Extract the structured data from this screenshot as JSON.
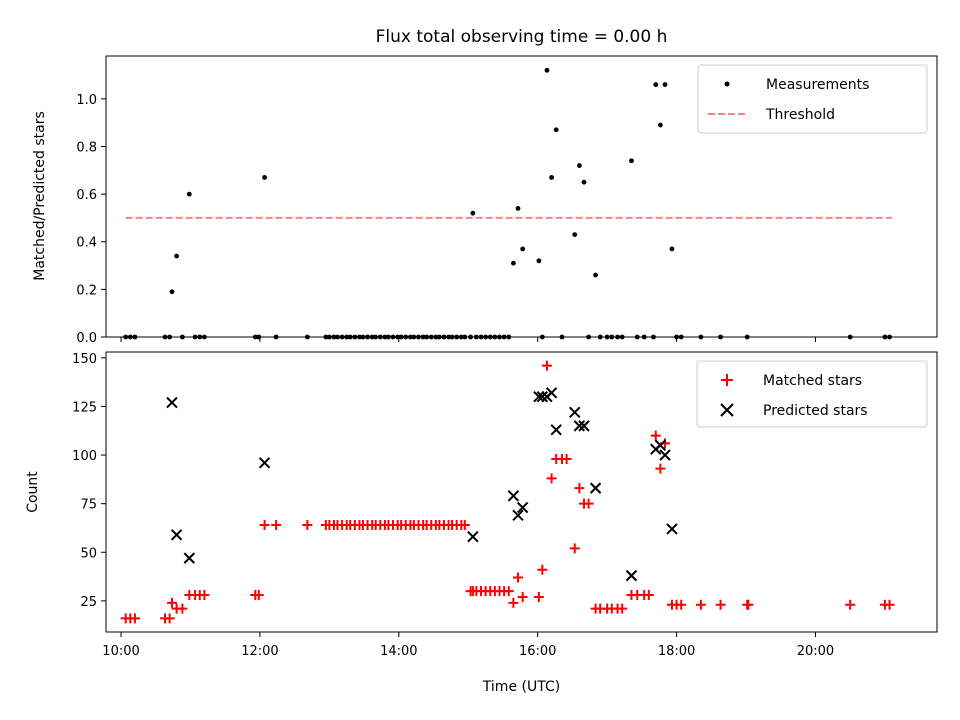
{
  "chart_data": [
    {
      "type": "scatter",
      "title": "Flux total observing time = 0.00 h",
      "xlabel": "",
      "ylabel": "Matched/Predicted stars",
      "xlim": [
        "09:47",
        "21:45"
      ],
      "ylim": [
        0,
        1.18
      ],
      "x_ticks": [
        "10:00",
        "12:00",
        "14:00",
        "16:00",
        "18:00",
        "20:00"
      ],
      "x_ticklabels_visible": false,
      "y_ticks": [
        0.0,
        0.2,
        0.4,
        0.6,
        0.8,
        1.0
      ],
      "y_ticklabels": [
        "0.0",
        "0.2",
        "0.4",
        "0.6",
        "0.8",
        "1.0"
      ],
      "legend_position": "upper right",
      "grid": false,
      "series": [
        {
          "name": "Measurements",
          "marker": "dot",
          "color": "#000000",
          "points": [
            [
              "10:04",
              0
            ],
            [
              "10:08",
              0
            ],
            [
              "10:12",
              0
            ],
            [
              "10:38",
              0
            ],
            [
              "10:42",
              0
            ],
            [
              "10:44",
              0.19
            ],
            [
              "10:48",
              0.34
            ],
            [
              "10:53",
              0
            ],
            [
              "10:59",
              0.6
            ],
            [
              "11:04",
              0
            ],
            [
              "11:08",
              0
            ],
            [
              "11:12",
              0
            ],
            [
              "11:56",
              0
            ],
            [
              "11:59",
              0
            ],
            [
              "12:04",
              0.67
            ],
            [
              "12:14",
              0
            ],
            [
              "12:41",
              0
            ],
            [
              "12:57",
              0
            ],
            [
              "13:00",
              0
            ],
            [
              "13:04",
              0
            ],
            [
              "13:07",
              0
            ],
            [
              "13:11",
              0
            ],
            [
              "13:15",
              0
            ],
            [
              "13:18",
              0
            ],
            [
              "13:22",
              0
            ],
            [
              "13:26",
              0
            ],
            [
              "13:29",
              0
            ],
            [
              "13:33",
              0
            ],
            [
              "13:37",
              0
            ],
            [
              "13:40",
              0
            ],
            [
              "13:44",
              0
            ],
            [
              "13:48",
              0
            ],
            [
              "13:51",
              0
            ],
            [
              "13:55",
              0
            ],
            [
              "13:59",
              0
            ],
            [
              "14:02",
              0
            ],
            [
              "14:06",
              0
            ],
            [
              "14:10",
              0
            ],
            [
              "14:13",
              0
            ],
            [
              "14:17",
              0
            ],
            [
              "14:21",
              0
            ],
            [
              "14:24",
              0
            ],
            [
              "14:28",
              0
            ],
            [
              "14:32",
              0
            ],
            [
              "14:35",
              0
            ],
            [
              "14:39",
              0
            ],
            [
              "14:43",
              0
            ],
            [
              "14:46",
              0
            ],
            [
              "14:50",
              0
            ],
            [
              "14:54",
              0
            ],
            [
              "14:57",
              0
            ],
            [
              "15:02",
              0
            ],
            [
              "15:04",
              0.52
            ],
            [
              "15:07",
              0
            ],
            [
              "15:11",
              0
            ],
            [
              "15:15",
              0
            ],
            [
              "15:19",
              0
            ],
            [
              "15:23",
              0
            ],
            [
              "15:27",
              0
            ],
            [
              "15:31",
              0
            ],
            [
              "15:35",
              0
            ],
            [
              "15:39",
              0.31
            ],
            [
              "15:43",
              0.54
            ],
            [
              "15:47",
              0.37
            ],
            [
              "16:01",
              0.32
            ],
            [
              "16:04",
              0
            ],
            [
              "16:08",
              1.12
            ],
            [
              "16:12",
              0.67
            ],
            [
              "16:16",
              0.87
            ],
            [
              "16:21",
              0
            ],
            [
              "16:32",
              0.43
            ],
            [
              "16:36",
              0.72
            ],
            [
              "16:40",
              0.65
            ],
            [
              "16:44",
              0
            ],
            [
              "16:50",
              0.26
            ],
            [
              "16:54",
              0
            ],
            [
              "17:00",
              0
            ],
            [
              "17:04",
              0
            ],
            [
              "17:09",
              0
            ],
            [
              "17:13",
              0
            ],
            [
              "17:21",
              0.74
            ],
            [
              "17:26",
              0
            ],
            [
              "17:32",
              0
            ],
            [
              "17:40",
              0
            ],
            [
              "17:42",
              1.06
            ],
            [
              "17:46",
              0.89
            ],
            [
              "17:50",
              1.06
            ],
            [
              "17:56",
              0.37
            ],
            [
              "18:00",
              0
            ],
            [
              "18:04",
              0
            ],
            [
              "18:21",
              0
            ],
            [
              "18:38",
              0
            ],
            [
              "19:01",
              0
            ],
            [
              "20:30",
              0
            ],
            [
              "21:00",
              0
            ],
            [
              "21:04",
              0
            ]
          ]
        },
        {
          "name": "Threshold",
          "kind": "line",
          "style": "dashed",
          "color": "#ff8080",
          "points": [
            [
              "10:04",
              0.5
            ],
            [
              "21:06",
              0.5
            ]
          ]
        }
      ]
    },
    {
      "type": "scatter",
      "title": "",
      "xlabel": "Time (UTC)",
      "ylabel": "Count",
      "xlim": [
        "09:47",
        "21:45"
      ],
      "ylim": [
        9,
        153
      ],
      "x_ticks": [
        "10:00",
        "12:00",
        "14:00",
        "16:00",
        "18:00",
        "20:00"
      ],
      "x_ticklabels": [
        "10:00",
        "12:00",
        "14:00",
        "16:00",
        "18:00",
        "20:00"
      ],
      "y_ticks": [
        25,
        50,
        75,
        100,
        125,
        150
      ],
      "y_ticklabels": [
        "25",
        "50",
        "75",
        "100",
        "125",
        "150"
      ],
      "legend_position": "upper right",
      "grid": false,
      "series": [
        {
          "name": "Matched stars",
          "marker": "plus",
          "color": "#ff0000",
          "points": [
            [
              "10:04",
              16
            ],
            [
              "10:08",
              16
            ],
            [
              "10:12",
              16
            ],
            [
              "10:38",
              16
            ],
            [
              "10:42",
              16
            ],
            [
              "10:44",
              24
            ],
            [
              "10:48",
              21
            ],
            [
              "10:53",
              21
            ],
            [
              "10:59",
              28
            ],
            [
              "11:04",
              28
            ],
            [
              "11:08",
              28
            ],
            [
              "11:12",
              28
            ],
            [
              "11:56",
              28
            ],
            [
              "11:59",
              28
            ],
            [
              "12:04",
              64
            ],
            [
              "12:14",
              64
            ],
            [
              "12:41",
              64
            ],
            [
              "12:57",
              64
            ],
            [
              "13:00",
              64
            ],
            [
              "13:04",
              64
            ],
            [
              "13:07",
              64
            ],
            [
              "13:11",
              64
            ],
            [
              "13:15",
              64
            ],
            [
              "13:18",
              64
            ],
            [
              "13:22",
              64
            ],
            [
              "13:26",
              64
            ],
            [
              "13:29",
              64
            ],
            [
              "13:33",
              64
            ],
            [
              "13:37",
              64
            ],
            [
              "13:40",
              64
            ],
            [
              "13:44",
              64
            ],
            [
              "13:48",
              64
            ],
            [
              "13:51",
              64
            ],
            [
              "13:55",
              64
            ],
            [
              "13:59",
              64
            ],
            [
              "14:02",
              64
            ],
            [
              "14:06",
              64
            ],
            [
              "14:10",
              64
            ],
            [
              "14:13",
              64
            ],
            [
              "14:17",
              64
            ],
            [
              "14:21",
              64
            ],
            [
              "14:24",
              64
            ],
            [
              "14:28",
              64
            ],
            [
              "14:32",
              64
            ],
            [
              "14:35",
              64
            ],
            [
              "14:39",
              64
            ],
            [
              "14:43",
              64
            ],
            [
              "14:46",
              64
            ],
            [
              "14:50",
              64
            ],
            [
              "14:54",
              64
            ],
            [
              "14:57",
              64
            ],
            [
              "15:02",
              30
            ],
            [
              "15:04",
              30
            ],
            [
              "15:07",
              30
            ],
            [
              "15:11",
              30
            ],
            [
              "15:15",
              30
            ],
            [
              "15:19",
              30
            ],
            [
              "15:23",
              30
            ],
            [
              "15:27",
              30
            ],
            [
              "15:31",
              30
            ],
            [
              "15:35",
              30
            ],
            [
              "15:39",
              24
            ],
            [
              "15:43",
              37
            ],
            [
              "15:47",
              27
            ],
            [
              "16:01",
              27
            ],
            [
              "16:04",
              41
            ],
            [
              "16:08",
              146
            ],
            [
              "16:12",
              88
            ],
            [
              "16:16",
              98
            ],
            [
              "16:21",
              98
            ],
            [
              "16:25",
              98
            ],
            [
              "16:32",
              52
            ],
            [
              "16:36",
              83
            ],
            [
              "16:40",
              75
            ],
            [
              "16:44",
              75
            ],
            [
              "16:50",
              21
            ],
            [
              "16:54",
              21
            ],
            [
              "17:00",
              21
            ],
            [
              "17:04",
              21
            ],
            [
              "17:09",
              21
            ],
            [
              "17:13",
              21
            ],
            [
              "17:21",
              28
            ],
            [
              "17:26",
              28
            ],
            [
              "17:32",
              28
            ],
            [
              "17:36",
              28
            ],
            [
              "17:42",
              110
            ],
            [
              "17:46",
              93
            ],
            [
              "17:50",
              106
            ],
            [
              "17:56",
              23
            ],
            [
              "18:00",
              23
            ],
            [
              "18:04",
              23
            ],
            [
              "18:21",
              23
            ],
            [
              "18:38",
              23
            ],
            [
              "19:01",
              23
            ],
            [
              "19:02",
              23
            ],
            [
              "20:30",
              23
            ],
            [
              "21:00",
              23
            ],
            [
              "21:04",
              23
            ]
          ]
        },
        {
          "name": "Predicted stars",
          "marker": "x",
          "color": "#000000",
          "points": [
            [
              "10:44",
              127
            ],
            [
              "10:48",
              59
            ],
            [
              "10:59",
              47
            ],
            [
              "12:04",
              96
            ],
            [
              "15:04",
              58
            ],
            [
              "15:39",
              79
            ],
            [
              "15:43",
              69
            ],
            [
              "15:47",
              73
            ],
            [
              "16:01",
              130
            ],
            [
              "16:04",
              130
            ],
            [
              "16:08",
              130
            ],
            [
              "16:12",
              132
            ],
            [
              "16:16",
              113
            ],
            [
              "16:32",
              122
            ],
            [
              "16:36",
              115
            ],
            [
              "16:40",
              115
            ],
            [
              "16:50",
              83
            ],
            [
              "17:21",
              38
            ],
            [
              "17:42",
              103
            ],
            [
              "17:46",
              105
            ],
            [
              "17:50",
              100
            ],
            [
              "17:56",
              62
            ]
          ]
        }
      ]
    }
  ]
}
